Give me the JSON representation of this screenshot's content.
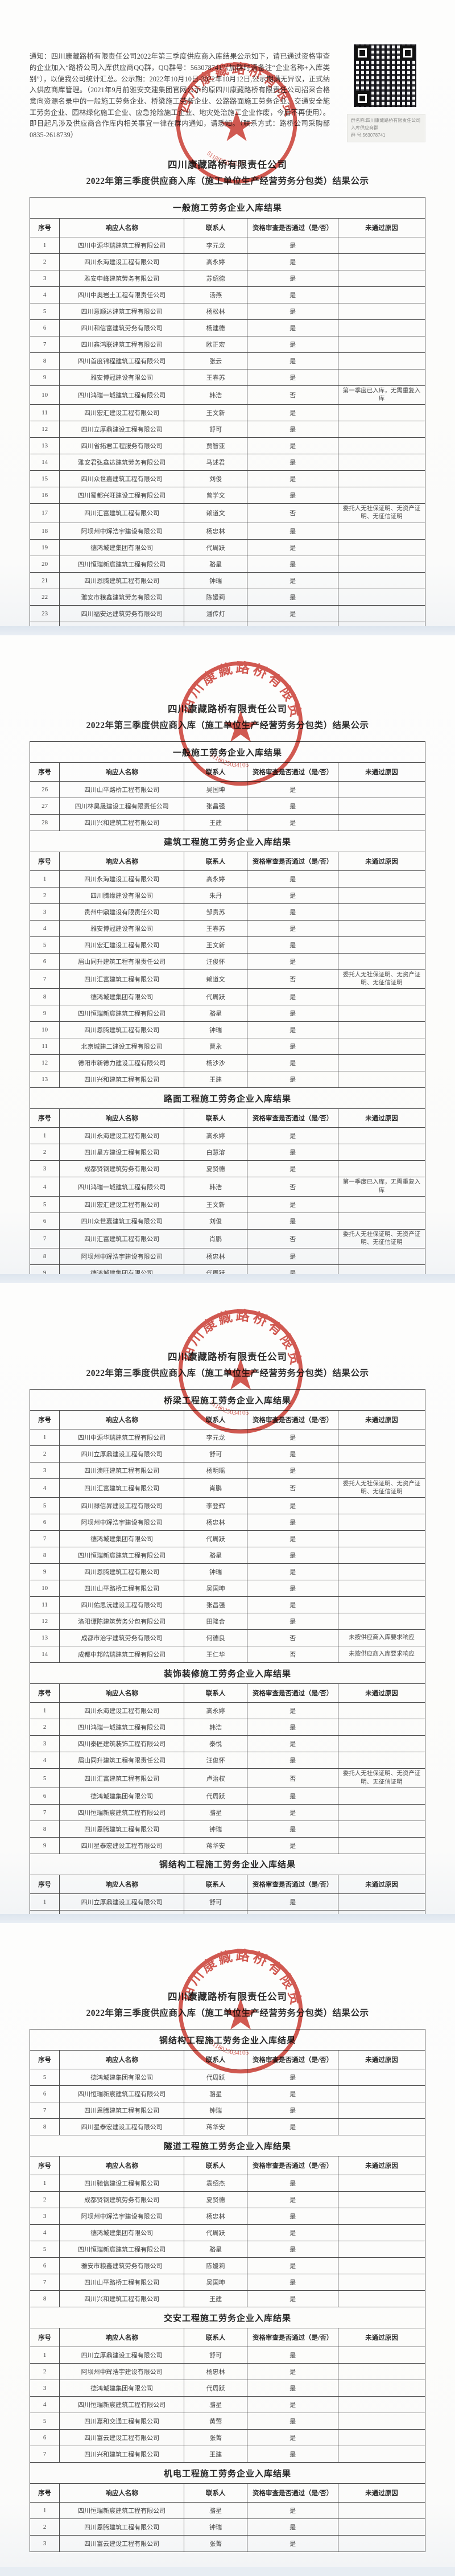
{
  "document": {
    "notice": "通知：四川康藏路桥有限责任公司2022年第三季度供应商入库结果公示如下，请已通过资格审查的企业加入“路桥公司入库供应商QQ群，QQ群号：563078741”（加群时请备注“企业名称+入库类别”），以便我公司统计汇总。公示期：2022年10月10日-2022年10月12日,公示期满无异议，正式纳入供应商库管理。（2021年9月前雅安交建集团官网公示的原四川康藏路桥有限责任公司招采合格意向资源名录中的一般施工劳务企业、桥梁施工劳务企业、公路路面施工劳务企业、交通安全施工劳务企业、园林绿化施工企业、应急抢险施工企业、地灾处治施工企业作废，今后不再使用）。即日起凡涉及供应商合作库内相关事宜一律在群内通知，请悉知。（联系方式：路桥公司采购部 0835-2618739）",
    "qr_caption_line1": "群名称:四川康藏路桥有限责任公司入库供应商群",
    "qr_caption_line2": "群  号:563078741",
    "title_line1": "四川康藏路桥有限责任公司",
    "title_line2": "2022年第三季度供应商入库（施工单位生产经营劳务分包类）结果公示",
    "columns": [
      "序号",
      "响应人名称",
      "联系人",
      "资格审查是否通过（是/否）",
      "未通过原因"
    ],
    "seal": {
      "ring_text": "四川康藏路桥有限责任公",
      "number": "5118025034105",
      "color": "#c9352c"
    }
  },
  "pages": [
    {
      "tables": [
        {
          "section": "一般施工劳务企业入库结果",
          "rows": [
            [
              "1",
              "四川中源华瑞建筑工程有限公司",
              "李元龙",
              "是",
              ""
            ],
            [
              "2",
              "四川永海建设工程有限公司",
              "高永婷",
              "是",
              ""
            ],
            [
              "3",
              "雅安申峰建筑劳务有限公司",
              "苏绍德",
              "是",
              ""
            ],
            [
              "4",
              "四川中奥岩土工程有限责任公司",
              "汤燕",
              "是",
              ""
            ],
            [
              "5",
              "四川意顺达建筑工程有限公司",
              "杨松林",
              "是",
              ""
            ],
            [
              "6",
              "四川和信富建筑劳务有限公司",
              "杨建德",
              "是",
              ""
            ],
            [
              "7",
              "四川鑫鸿联建筑工程有限公司",
              "欧正宏",
              "是",
              ""
            ],
            [
              "8",
              "四川首度锦程建筑工程有限公司",
              "张云",
              "是",
              ""
            ],
            [
              "9",
              "雅安博冠建设有限公司",
              "王春苏",
              "是",
              ""
            ],
            [
              "10",
              "四川鸿瑞一城建筑工程有限公司",
              "韩浩",
              "否",
              "第一季度已入库，无需重复入库"
            ],
            [
              "11",
              "四川宏汇建设工程有限公司",
              "王文新",
              "是",
              ""
            ],
            [
              "12",
              "四川立厚鼎建设工程有限公司",
              "舒可",
              "是",
              ""
            ],
            [
              "13",
              "四川省拓君工程服务有限公司",
              "贾智亚",
              "是",
              ""
            ],
            [
              "14",
              "雅安君弘鑫达建筑劳务有限公司",
              "马述君",
              "是",
              ""
            ],
            [
              "15",
              "四川众世嘉建筑工程有限公司",
              "刘俊",
              "是",
              ""
            ],
            [
              "16",
              "四川蜀都兴旺建设工程有限公司",
              "曾学文",
              "是",
              ""
            ],
            [
              "17",
              "四川汇富建筑工程有限公司",
              "赖道文",
              "否",
              "委托人无社保证明、无资产证明、无征信证明"
            ],
            [
              "18",
              "阿坝州中辉浩宇建设有限公司",
              "杨忠林",
              "是",
              ""
            ],
            [
              "19",
              "德鸿城建集团有限公司",
              "代周跃",
              "是",
              ""
            ],
            [
              "20",
              "四川恒瑞新宸建筑工程有限公司",
              "骆星",
              "是",
              ""
            ],
            [
              "21",
              "四川恩腾建筑工程有限公司",
              "钟瑞",
              "是",
              ""
            ],
            [
              "22",
              "雅安市粮鑫建筑劳务有限公司",
              "陈媛莉",
              "是",
              ""
            ],
            [
              "23",
              "四川福安达建筑劳务有限公司",
              "潘传灯",
              "是",
              ""
            ],
            [
              "24",
              "雅安市宏达建筑劳务有限公司",
              "梁景路",
              "是",
              ""
            ],
            [
              "25",
              "德阳市新德力建设工程有限公司",
              "杨沙沙",
              "是",
              ""
            ]
          ]
        }
      ]
    },
    {
      "tables": [
        {
          "section": "一般施工劳务企业入库结果",
          "rows": [
            [
              "26",
              "四川山平路桥工程有限公司",
              "吴国坤",
              "是",
              ""
            ],
            [
              "27",
              "四川林昊晟建设工程有限责任公司",
              "张昌强",
              "是",
              ""
            ],
            [
              "28",
              "四川兴和建筑工程有限公司",
              "王建",
              "是",
              ""
            ]
          ]
        },
        {
          "section": "建筑工程施工劳务企业入库结果",
          "rows": [
            [
              "1",
              "四川永海建设工程有限公司",
              "高永婷",
              "是",
              ""
            ],
            [
              "2",
              "四川腾缘建设有限公司",
              "朱丹",
              "是",
              ""
            ],
            [
              "3",
              "贵州中鼎建设有限责任公司",
              "邹贵苏",
              "是",
              ""
            ],
            [
              "4",
              "雅安博冠建设有限公司",
              "王春苏",
              "是",
              ""
            ],
            [
              "5",
              "四川宏汇建设工程有限公司",
              "王文新",
              "是",
              ""
            ],
            [
              "6",
              "眉山同升建筑工程有限责任公司",
              "汪俊怀",
              "是",
              ""
            ],
            [
              "7",
              "四川汇富建筑工程有限公司",
              "赖道文",
              "否",
              "委托人无社保证明、无资产证明、无征信证明"
            ],
            [
              "8",
              "德鸿城建集团有限公司",
              "代周跃",
              "是",
              ""
            ],
            [
              "9",
              "四川恒瑞新宸建筑工程有限公司",
              "骆星",
              "是",
              ""
            ],
            [
              "10",
              "四川恩腾建筑工程有限公司",
              "钟瑞",
              "是",
              ""
            ],
            [
              "11",
              "北京城建二建设工程有限公司",
              "曹永",
              "是",
              ""
            ],
            [
              "12",
              "德阳市新德力建设工程有限公司",
              "杨沙沙",
              "是",
              ""
            ],
            [
              "13",
              "四川兴和建筑工程有限公司",
              "王建",
              "是",
              ""
            ]
          ]
        },
        {
          "section": "路面工程施工劳务企业入库结果",
          "rows": [
            [
              "1",
              "四川永海建设工程有限公司",
              "高永婷",
              "是",
              ""
            ],
            [
              "2",
              "四川星方建设工程有限公司",
              "白慧溶",
              "是",
              ""
            ],
            [
              "3",
              "成都贤钢建筑劳务有限公司",
              "夏贤德",
              "是",
              ""
            ],
            [
              "4",
              "四川鸿瑞一城建筑工程有限公司",
              "韩浩",
              "否",
              "第一季度已入库，无需重复入库"
            ],
            [
              "5",
              "四川宏汇建设工程有限公司",
              "王文新",
              "是",
              ""
            ],
            [
              "6",
              "四川众世嘉建筑工程有限公司",
              "刘俊",
              "是",
              ""
            ],
            [
              "7",
              "四川汇富建筑工程有限公司",
              "肖鹏",
              "否",
              "委托人无社保证明、无资产证明、无征信证明"
            ],
            [
              "8",
              "阿坝州中辉浩宇建设有限公司",
              "杨忠林",
              "是",
              ""
            ],
            [
              "9",
              "德鸿城建集团有限公司",
              "代周跃",
              "是",
              ""
            ],
            [
              "10",
              "四川恒瑞新宸建筑工程有限公司",
              "骆星",
              "是",
              ""
            ],
            [
              "11",
              "德阳市新德力建设工程有限公司",
              "杨沙沙",
              "是",
              ""
            ]
          ]
        }
      ]
    },
    {
      "tables": [
        {
          "section": "桥梁工程施工劳务企业入库结果",
          "rows": [
            [
              "1",
              "四川中源华瑞建筑工程有限公司",
              "李元龙",
              "是",
              ""
            ],
            [
              "2",
              "四川立厚鼎建设工程有限公司",
              "舒可",
              "是",
              ""
            ],
            [
              "3",
              "四川澳旺建筑工程有限公司",
              "杨明瑶",
              "是",
              ""
            ],
            [
              "4",
              "四川汇富建筑工程有限公司",
              "肖鹏",
              "否",
              "委托人无社保证明、无资产证明、无征信证明"
            ],
            [
              "5",
              "四川禄信昇建设工程有限公司",
              "李登辉",
              "是",
              ""
            ],
            [
              "6",
              "阿坝州中辉浩宇建设有限公司",
              "杨忠林",
              "是",
              ""
            ],
            [
              "7",
              "德鸿城建集团有限公司",
              "代周跃",
              "是",
              ""
            ],
            [
              "8",
              "四川恒瑞新宸建筑工程有限公司",
              "骆星",
              "是",
              ""
            ],
            [
              "9",
              "四川恩腾建筑工程有限公司",
              "钟瑞",
              "是",
              ""
            ],
            [
              "10",
              "四川山平路桥工程有限公司",
              "吴国坤",
              "是",
              ""
            ],
            [
              "11",
              "四川佑思沅建设工程有限公司",
              "张昌强",
              "是",
              ""
            ],
            [
              "12",
              "洛阳谭陈建筑劳务分包有限公司",
              "田隆合",
              "是",
              ""
            ],
            [
              "13",
              "成都市治宇建筑劳务有限公司",
              "何德良",
              "否",
              "未按供应商入库要求响应"
            ],
            [
              "14",
              "成都中邦皓瑞建筑工程有限公司",
              "王仁华",
              "否",
              "未按供应商入库要求响应"
            ]
          ]
        },
        {
          "section": "装饰装修施工劳务企业入库结果",
          "rows": [
            [
              "1",
              "四川永海建设工程有限公司",
              "高永婷",
              "是",
              ""
            ],
            [
              "2",
              "四川鸿瑞一城建筑工程有限公司",
              "韩浩",
              "是",
              ""
            ],
            [
              "3",
              "四川秦匠建筑装饰工程有限公司",
              "秦悦",
              "是",
              ""
            ],
            [
              "4",
              "眉山同升建筑工程有限责任公司",
              "汪俊怀",
              "是",
              ""
            ],
            [
              "5",
              "四川汇富建筑工程有限公司",
              "卢治权",
              "否",
              "委托人无社保证明、无资产证明、无征信证明"
            ],
            [
              "6",
              "德鸿城建集团有限公司",
              "代周跃",
              "是",
              ""
            ],
            [
              "7",
              "四川恒瑞新宸建筑工程有限公司",
              "骆星",
              "是",
              ""
            ],
            [
              "8",
              "四川恩腾建筑工程有限公司",
              "钟瑞",
              "是",
              ""
            ],
            [
              "9",
              "四川星泰宏建设工程有限公司",
              "蒋华安",
              "是",
              ""
            ]
          ]
        },
        {
          "section": "钢结构工程施工劳务企业入库结果",
          "rows": [
            [
              "1",
              "四川立厚鼎建设工程有限公司",
              "舒可",
              "是",
              ""
            ],
            [
              "2",
              "眉山同升建筑工程有限责任公司",
              "汪俊怀",
              "是",
              ""
            ],
            [
              "3",
              "四川澳旺建筑工程有限公司",
              "杨明瑶",
              "是",
              ""
            ],
            [
              "4",
              "阿坝州中辉浩宇建设有限公司",
              "杨忠林",
              "是",
              ""
            ]
          ]
        }
      ]
    },
    {
      "tables": [
        {
          "section": "钢结构工程施工劳务企业入库结果",
          "rows": [
            [
              "5",
              "德鸿城建集团有限公司",
              "代周跃",
              "是",
              ""
            ],
            [
              "6",
              "四川恒瑞新宸建筑工程有限公司",
              "骆星",
              "是",
              ""
            ],
            [
              "7",
              "四川恩腾建筑工程有限公司",
              "钟瑞",
              "是",
              ""
            ],
            [
              "8",
              "四川星泰宏建设工程有限公司",
              "蒋华安",
              "是",
              ""
            ]
          ]
        },
        {
          "section": "隧道工程施工劳务企业入库结果",
          "rows": [
            [
              "1",
              "四川驰信建设工程有限公司",
              "袁绍杰",
              "是",
              ""
            ],
            [
              "2",
              "成都贤钢建筑劳务有限公司",
              "夏贤德",
              "是",
              ""
            ],
            [
              "3",
              "阿坝州中辉浩宇建设有限公司",
              "杨忠林",
              "是",
              ""
            ],
            [
              "4",
              "德鸿城建集团有限公司",
              "代周跃",
              "是",
              ""
            ],
            [
              "5",
              "四川恒瑞新宸建筑工程有限公司",
              "骆星",
              "是",
              ""
            ],
            [
              "6",
              "雅安市粮鑫建筑劳务有限公司",
              "陈媛莉",
              "是",
              ""
            ],
            [
              "7",
              "四川山平路桥工程有限公司",
              "吴国坤",
              "是",
              ""
            ],
            [
              "8",
              "四川兴和建筑工程有限公司",
              "王建",
              "是",
              ""
            ]
          ]
        },
        {
          "section": "交安工程施工劳务企业入库结果",
          "rows": [
            [
              "1",
              "四川立厚鼎建设工程有限公司",
              "舒可",
              "是",
              ""
            ],
            [
              "2",
              "阿坝州中辉浩宇建设有限公司",
              "杨忠林",
              "是",
              ""
            ],
            [
              "3",
              "德鸿城建集团有限公司",
              "代周跃",
              "是",
              ""
            ],
            [
              "4",
              "四川恒瑞新宸建筑工程有限公司",
              "骆星",
              "是",
              ""
            ],
            [
              "5",
              "四川嘉和交通工程有限公司",
              "黄莺",
              "是",
              ""
            ],
            [
              "6",
              "四川富云建设工程有限公司",
              "张菁",
              "是",
              ""
            ],
            [
              "7",
              "四川兴和建筑工程有限公司",
              "王建",
              "是",
              ""
            ]
          ]
        },
        {
          "section": "机电工程施工劳务企业入库结果",
          "rows": [
            [
              "1",
              "四川恒瑞新宸建筑工程有限公司",
              "骆星",
              "是",
              ""
            ],
            [
              "2",
              "四川恩腾建筑工程有限公司",
              "钟瑞",
              "是",
              ""
            ],
            [
              "3",
              "四川富云建设工程有限公司",
              "张菁",
              "是",
              ""
            ]
          ]
        }
      ]
    }
  ]
}
